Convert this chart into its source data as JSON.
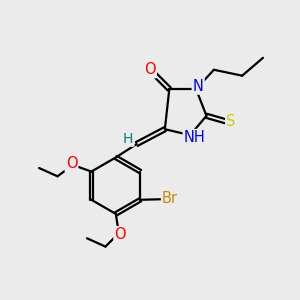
{
  "bg_color": "#ebebeb",
  "atom_colors": {
    "C": "#000000",
    "N": "#0000ff",
    "O": "#ff0000",
    "S": "#cccc00",
    "Br": "#cc8800",
    "H": "#008080"
  },
  "bond_color": "#000000",
  "bond_width": 1.6,
  "font_size": 10.5
}
